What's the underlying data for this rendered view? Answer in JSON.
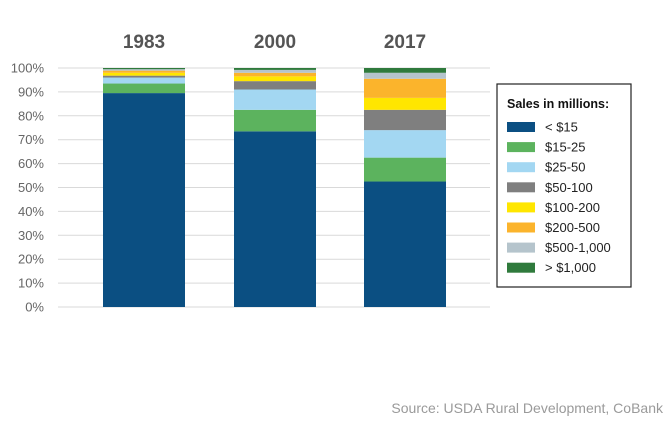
{
  "chart_data": {
    "type": "bar",
    "stacked": true,
    "categories": [
      "1983",
      "2000",
      "2017"
    ],
    "series": [
      {
        "name": "< $15",
        "color": "#0b4f82",
        "values": [
          89.5,
          73.5,
          52.5
        ]
      },
      {
        "name": "$15-25",
        "color": "#5cb35e",
        "values": [
          4.0,
          9.0,
          10.0
        ]
      },
      {
        "name": "$25-50",
        "color": "#a3d7f2",
        "values": [
          2.5,
          8.5,
          11.5
        ]
      },
      {
        "name": "$50-100",
        "color": "#7f7f7f",
        "values": [
          0.8,
          3.5,
          8.5
        ]
      },
      {
        "name": "$100-200",
        "color": "#ffe600",
        "values": [
          1.2,
          2.0,
          5.0
        ]
      },
      {
        "name": "$200-500",
        "color": "#fbb42c",
        "values": [
          0.9,
          1.5,
          8.0
        ]
      },
      {
        "name": "$500-1,000",
        "color": "#b5c4cc",
        "values": [
          0.6,
          1.2,
          2.5
        ]
      },
      {
        "name": "> $1,000",
        "color": "#2f7a3c",
        "values": [
          0.5,
          0.8,
          2.0
        ]
      }
    ],
    "yticks": [
      "0%",
      "10%",
      "20%",
      "30%",
      "40%",
      "50%",
      "60%",
      "70%",
      "80%",
      "90%",
      "100%"
    ],
    "ylim": [
      0,
      100
    ],
    "grid": true,
    "legend_title": "Sales in millions:",
    "legend_position": "right"
  },
  "source": "Source: USDA Rural Development, CoBank"
}
